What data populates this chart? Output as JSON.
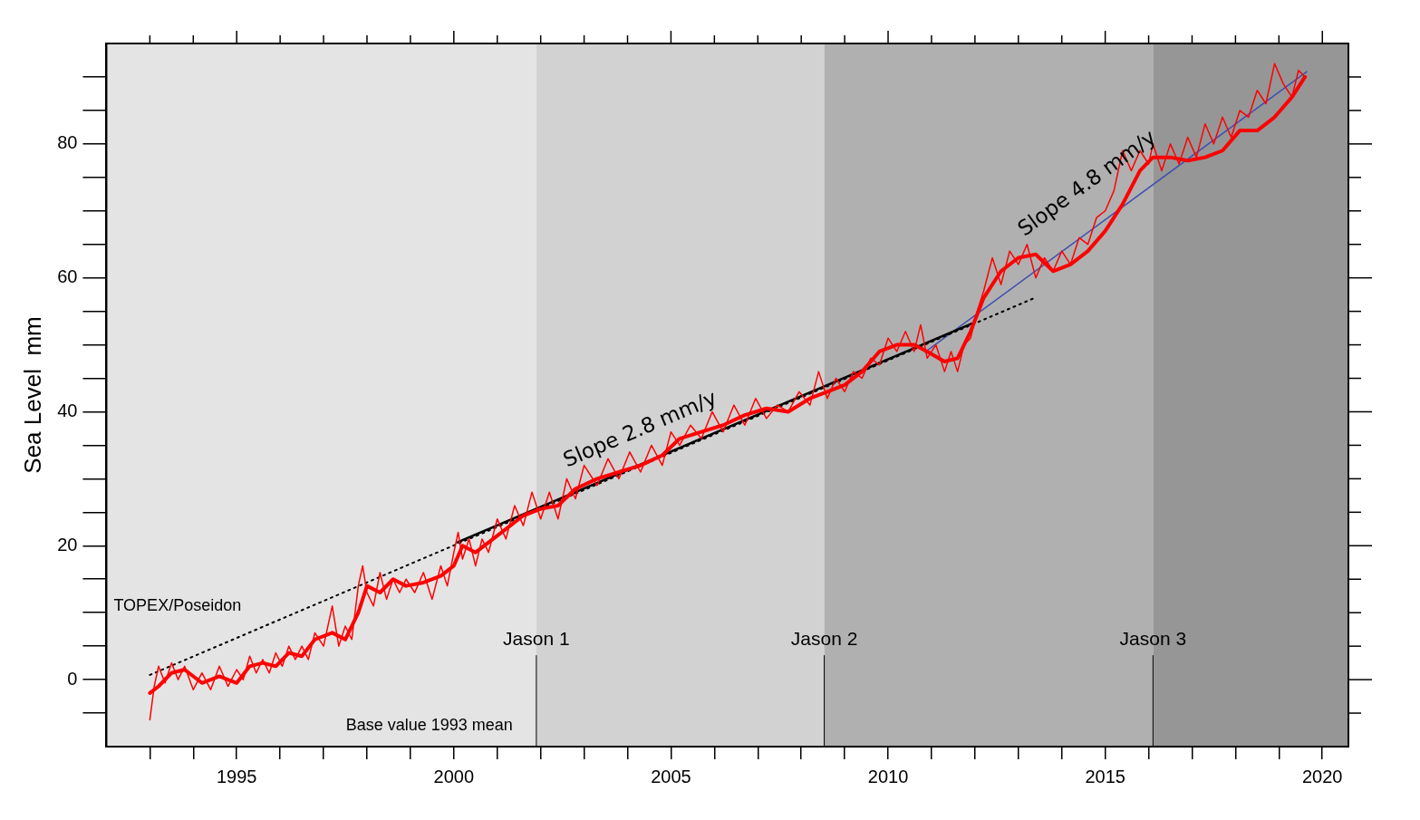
{
  "chart_data": {
    "type": "line",
    "ylabel": "Sea Level  mm",
    "xlim": [
      1992,
      2020.6
    ],
    "ylim": [
      -10,
      95
    ],
    "xticks": [
      {
        "value": 1993,
        "label": null
      },
      {
        "value": 1994,
        "label": null
      },
      1995,
      {
        "value": 1996,
        "label": null
      },
      {
        "value": 1997,
        "label": null
      },
      {
        "value": 1998,
        "label": null
      },
      {
        "value": 1999,
        "label": null
      },
      2000,
      {
        "value": 2001,
        "label": null
      },
      {
        "value": 2002,
        "label": null
      },
      {
        "value": 2003,
        "label": null
      },
      {
        "value": 2004,
        "label": null
      },
      2005,
      {
        "value": 2006,
        "label": null
      },
      {
        "value": 2007,
        "label": null
      },
      {
        "value": 2008,
        "label": null
      },
      {
        "value": 2009,
        "label": null
      },
      2010,
      {
        "value": 2011,
        "label": null
      },
      {
        "value": 2012,
        "label": null
      },
      {
        "value": 2013,
        "label": null
      },
      {
        "value": 2014,
        "label": null
      },
      2015,
      {
        "value": 2016,
        "label": null
      },
      {
        "value": 2017,
        "label": null
      },
      {
        "value": 2018,
        "label": null
      },
      {
        "value": 2019,
        "label": null
      },
      2020
    ],
    "yticks": [
      {
        "value": -5,
        "label": null
      },
      0,
      {
        "value": 5,
        "label": null
      },
      {
        "value": 10,
        "label": null
      },
      {
        "value": 15,
        "label": null
      },
      20,
      {
        "value": 25,
        "label": null
      },
      {
        "value": 30,
        "label": null
      },
      {
        "value": 35,
        "label": null
      },
      40,
      {
        "value": 45,
        "label": null
      },
      {
        "value": 50,
        "label": null
      },
      {
        "value": 55,
        "label": null
      },
      60,
      {
        "value": 65,
        "label": null
      },
      {
        "value": 70,
        "label": null
      },
      {
        "value": 75,
        "label": null
      },
      80,
      {
        "value": 85,
        "label": null
      },
      {
        "value": 90,
        "label": null
      }
    ],
    "grid": false,
    "legend": false,
    "bands": [
      {
        "axis": "x",
        "from": 1992,
        "to": 2001.9,
        "label": "TOPEX/Poseidon",
        "color": "#e4e4e4"
      },
      {
        "axis": "x",
        "from": 2001.9,
        "to": 2008.53,
        "label": "Jason 1",
        "color": "#d2d2d2"
      },
      {
        "axis": "x",
        "from": 2008.53,
        "to": 2016.1,
        "label": "Jason 2",
        "color": "#b0b0b0"
      },
      {
        "axis": "x",
        "from": 2016.1,
        "to": 2020.6,
        "label": "Jason 3",
        "color": "#969696"
      }
    ],
    "annotations": [
      "Slope 2.8 mm/y",
      "Slope 4.8 mm/y",
      "Base value 1993 mean"
    ],
    "series": [
      {
        "color": "#ff0000",
        "line_style": "solid",
        "x": [
          1993.0,
          1993.1,
          1993.2,
          1993.35,
          1993.5,
          1993.65,
          1993.8,
          1994.0,
          1994.2,
          1994.4,
          1994.6,
          1994.8,
          1995.0,
          1995.15,
          1995.3,
          1995.45,
          1995.6,
          1995.75,
          1995.9,
          1996.05,
          1996.2,
          1996.35,
          1996.5,
          1996.65,
          1996.8,
          1997.0,
          1997.2,
          1997.35,
          1997.5,
          1997.65,
          1997.8,
          1997.9,
          1998.0,
          1998.15,
          1998.3,
          1998.45,
          1998.6,
          1998.75,
          1998.9,
          1999.1,
          1999.3,
          1999.5,
          1999.7,
          1999.85,
          2000.0,
          2000.1,
          2000.2,
          2000.35,
          2000.5,
          2000.65,
          2000.8,
          2001.0,
          2001.2,
          2001.4,
          2001.6,
          2001.8,
          2002.0,
          2002.2,
          2002.4,
          2002.6,
          2002.8,
          2003.0,
          2003.3,
          2003.55,
          2003.8,
          2004.05,
          2004.3,
          2004.55,
          2004.8,
          2005.0,
          2005.2,
          2005.45,
          2005.7,
          2005.95,
          2006.2,
          2006.45,
          2006.7,
          2006.95,
          2007.2,
          2007.45,
          2007.7,
          2007.95,
          2008.2,
          2008.4,
          2008.6,
          2008.8,
          2009.0,
          2009.2,
          2009.4,
          2009.6,
          2009.8,
          2010.0,
          2010.2,
          2010.4,
          2010.6,
          2010.75,
          2010.9,
          2011.1,
          2011.3,
          2011.45,
          2011.6,
          2011.75,
          2011.9,
          2012.05,
          2012.2,
          2012.4,
          2012.6,
          2012.8,
          2013.0,
          2013.2,
          2013.4,
          2013.6,
          2013.8,
          2014.0,
          2014.2,
          2014.4,
          2014.6,
          2014.8,
          2015.0,
          2015.2,
          2015.4,
          2015.6,
          2015.8,
          2016.0,
          2016.1,
          2016.3,
          2016.5,
          2016.7,
          2016.9,
          2017.1,
          2017.3,
          2017.5,
          2017.7,
          2017.9,
          2018.1,
          2018.3,
          2018.5,
          2018.7,
          2018.9,
          2019.1,
          2019.3,
          2019.45,
          2019.6
        ],
        "values": [
          -6,
          -1,
          2,
          -0.5,
          2.5,
          0,
          2,
          -1.5,
          1,
          -1.5,
          2,
          -1,
          1.5,
          0,
          3.5,
          1,
          3,
          1,
          4,
          2,
          5,
          3,
          5,
          3,
          7,
          5,
          11,
          5,
          8,
          6,
          14,
          17,
          13,
          11,
          16,
          12,
          15,
          13,
          15,
          13,
          16,
          12,
          17,
          14,
          19,
          22,
          18,
          21,
          17,
          21,
          19,
          24,
          21,
          26,
          23,
          28,
          24,
          28,
          24,
          30,
          27,
          32,
          29,
          33,
          30,
          34,
          31,
          35,
          32,
          37,
          35,
          38,
          36,
          40,
          37,
          41,
          38,
          42,
          39,
          41,
          40,
          43,
          41,
          46,
          42,
          45,
          43,
          46,
          45,
          48,
          47,
          51,
          49,
          52,
          49,
          53,
          48,
          50,
          46,
          49,
          46,
          50,
          51,
          55,
          58,
          63,
          59,
          64,
          62,
          65,
          60,
          63,
          61,
          64,
          62,
          66,
          65,
          69,
          70,
          73,
          79,
          76,
          79,
          77,
          80,
          76,
          80,
          77,
          81,
          78,
          83,
          80,
          84,
          81,
          85,
          84,
          88,
          86,
          92,
          89,
          87,
          91,
          90
        ]
      },
      {
        "color": "#ff0000",
        "line_style": "solid",
        "x": [
          1993.0,
          1993.2,
          1993.5,
          1993.8,
          1994.2,
          1994.6,
          1995.0,
          1995.3,
          1995.6,
          1995.9,
          1996.2,
          1996.5,
          1996.8,
          1997.2,
          1997.5,
          1997.8,
          1998.0,
          1998.3,
          1998.6,
          1998.9,
          1999.3,
          1999.7,
          2000.0,
          2000.2,
          2000.5,
          2000.8,
          2001.2,
          2001.6,
          2002.0,
          2002.4,
          2002.8,
          2003.3,
          2003.8,
          2004.3,
          2004.8,
          2005.2,
          2005.7,
          2006.2,
          2006.7,
          2007.2,
          2007.7,
          2008.2,
          2008.6,
          2009.0,
          2009.4,
          2009.8,
          2010.2,
          2010.6,
          2010.9,
          2011.3,
          2011.6,
          2011.9,
          2012.2,
          2012.6,
          2013.0,
          2013.4,
          2013.8,
          2014.2,
          2014.6,
          2015.0,
          2015.4,
          2015.8,
          2016.1,
          2016.5,
          2016.9,
          2017.3,
          2017.7,
          2018.1,
          2018.5,
          2018.9,
          2019.3,
          2019.6
        ],
        "values": [
          -2,
          -1,
          1,
          1.5,
          -0.5,
          0.5,
          -0.5,
          2,
          2.5,
          2,
          4,
          3.5,
          6,
          7,
          6,
          10,
          14,
          13,
          15,
          14,
          14.5,
          15.5,
          17,
          20,
          19,
          20.5,
          22.5,
          24.5,
          25.5,
          26,
          28.5,
          30,
          31,
          32,
          33.5,
          36,
          37,
          38,
          39.5,
          40.5,
          40,
          42,
          43,
          44,
          46,
          49,
          50,
          50,
          49,
          47.5,
          48,
          52,
          57,
          61,
          63,
          63.5,
          61,
          62,
          64,
          67,
          71,
          76,
          78,
          78,
          77.5,
          78,
          79,
          82,
          82,
          84,
          87,
          90
        ]
      },
      {
        "color": "#000000",
        "line_style": "dotted",
        "x": [
          1993.0,
          2013.41
        ],
        "values": [
          0.7,
          57.1
        ]
      },
      {
        "color": "#000000",
        "line_style": "solid",
        "x": [
          2000.08,
          2011.94
        ],
        "values": [
          20.5,
          53.2
        ]
      },
      {
        "color": "#4050b0",
        "line_style": "solid",
        "x": [
          2010.85,
          2019.64
        ],
        "values": [
          48.9,
          90.8
        ]
      }
    ]
  }
}
